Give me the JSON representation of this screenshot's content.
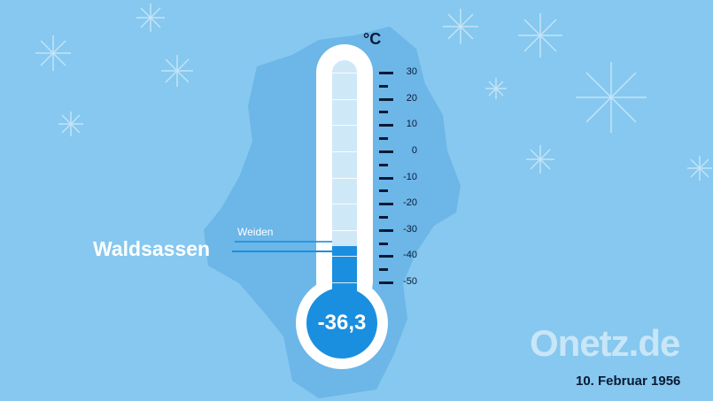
{
  "thermometer": {
    "unit": "°C",
    "value_label": "-36,3",
    "value": -36.3,
    "scale_min": -50,
    "scale_max": 30,
    "tick_labels": [
      "30",
      "20",
      "10",
      "0",
      "-10",
      "-20",
      "-30",
      "-40",
      "-50"
    ],
    "fill_color": "#1a8fe0"
  },
  "labels": {
    "weiden": "Weiden",
    "waldsassen": "Waldsassen"
  },
  "date": "10. Februar 1956",
  "logo": "Onetz.de",
  "colors": {
    "background": "#86c8ef",
    "map": "#6cb6e8"
  }
}
